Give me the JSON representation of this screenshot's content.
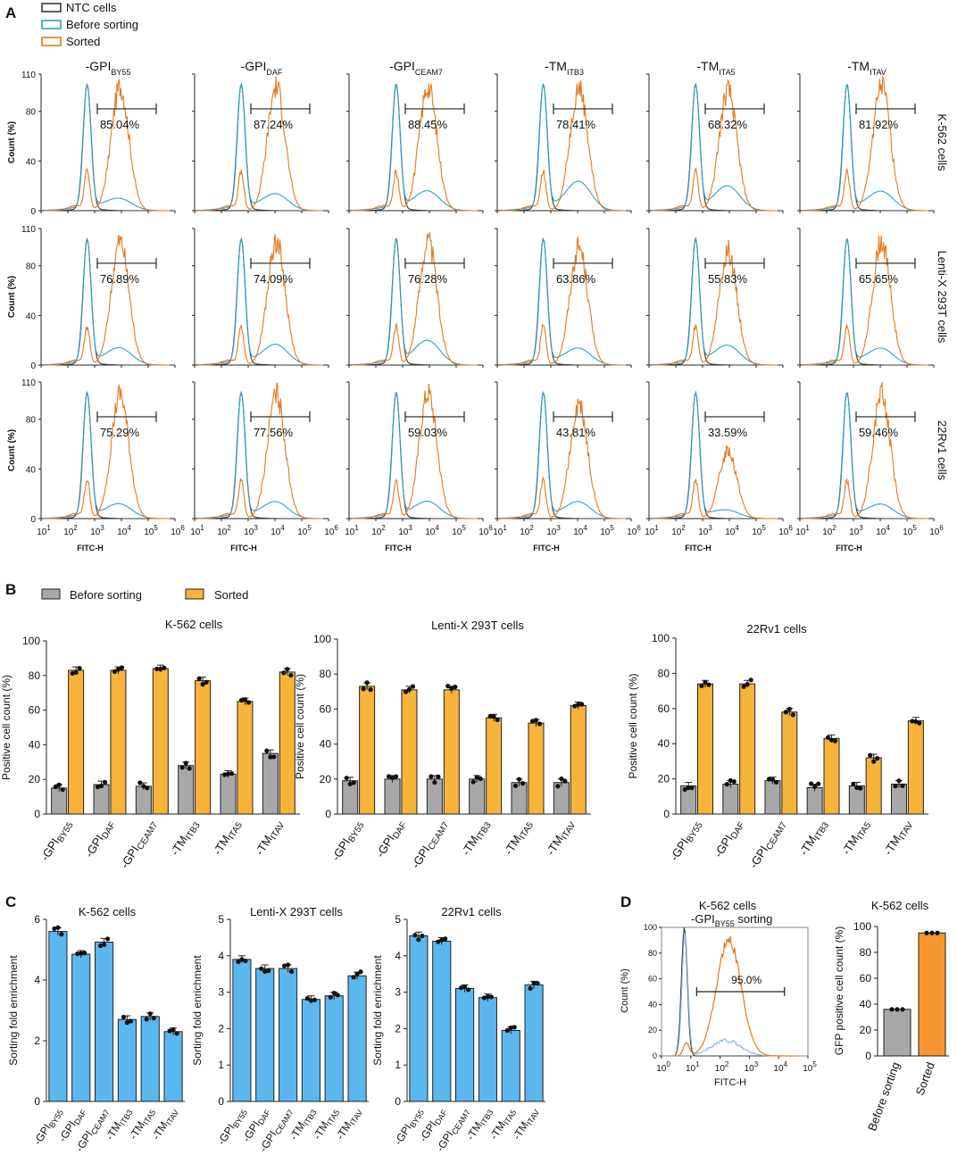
{
  "colors": {
    "ntc": "#3a3a3a",
    "before": "#2fa0cc",
    "sorted": "#e57a1e",
    "gray_bar": "#a8a8a8",
    "orange_bar": "#f8b33a",
    "blue_bar": "#5bb7ee",
    "orange_bar_d": "#f7962f"
  },
  "panel_a": {
    "label": "A",
    "legend": [
      "NTC cells",
      "Before sorting",
      "Sorted"
    ],
    "columns": [
      {
        "pre": "-GPI",
        "sub": "BY55"
      },
      {
        "pre": "-GPI",
        "sub": "DAF"
      },
      {
        "pre": "-GPI",
        "sub": "CEAM7"
      },
      {
        "pre": "-TM",
        "sub": "ITB3"
      },
      {
        "pre": "-TM",
        "sub": "ITA5"
      },
      {
        "pre": "-TM",
        "sub": "ITAV"
      }
    ],
    "rows": [
      "K-562 cells",
      "Lenti-X 293T cells",
      "22Rv1 cells"
    ],
    "ylabel": "Count  (%)",
    "yticks": [
      "0",
      "40",
      "80",
      "110"
    ],
    "xlabel": "FITC-H",
    "xtick_base": "10",
    "xtick_exp": [
      "1",
      "2",
      "3",
      "4",
      "5",
      "6"
    ],
    "gate_percent": [
      [
        "85.04%",
        "87.24%",
        "88.45%",
        "78.41%",
        "68.32%",
        "81.92%"
      ],
      [
        "76.89%",
        "74.09%",
        "76.28%",
        "63.86%",
        "55.83%",
        "65.65%"
      ],
      [
        "75.29%",
        "77.56%",
        "59.03%",
        "43.81%",
        "33.59%",
        "59.46%"
      ]
    ],
    "sorted_peak_height": [
      [
        100,
        100,
        100,
        100,
        97,
        100
      ],
      [
        100,
        100,
        100,
        95,
        92,
        100
      ],
      [
        100,
        100,
        100,
        93,
        55,
        100
      ]
    ],
    "before_tail_height": [
      [
        8,
        12,
        14,
        22,
        18,
        14
      ],
      [
        12,
        15,
        18,
        12,
        14,
        12
      ],
      [
        10,
        12,
        12,
        12,
        5,
        10
      ]
    ]
  },
  "chart_data": [
    {
      "panel": "B",
      "type": "bar",
      "legend": [
        "Before sorting",
        "Sorted"
      ],
      "charts": [
        {
          "title": "K-562 cells",
          "ylabel": "Positive cell count (%)",
          "ylim": [
            0,
            100
          ],
          "yticks": [
            "0",
            "20",
            "40",
            "60",
            "80",
            "100"
          ],
          "categories": [
            {
              "pre": "-GPI",
              "sub": "BY55"
            },
            {
              "pre": "-GPI",
              "sub": "DAF"
            },
            {
              "pre": "-GPI",
              "sub": "CEAM7"
            },
            {
              "pre": "-TM",
              "sub": "ITB3"
            },
            {
              "pre": "-TM",
              "sub": "ITA5"
            },
            {
              "pre": "-TM",
              "sub": "ITAV"
            }
          ],
          "series": [
            {
              "name": "Before sorting",
              "values": [
                15,
                17,
                16,
                28,
                23,
                35
              ]
            },
            {
              "name": "Sorted",
              "values": [
                83,
                83,
                84,
                77,
                65,
                82
              ]
            }
          ]
        },
        {
          "title": "Lenti-X 293T cells",
          "ylabel": "Positive cell count (%)",
          "ylim": [
            0,
            100
          ],
          "yticks": [
            "0",
            "20",
            "40",
            "60",
            "80",
            "100"
          ],
          "categories": [
            {
              "pre": "-GPI",
              "sub": "BY55"
            },
            {
              "pre": "-GPI",
              "sub": "DAF"
            },
            {
              "pre": "-GPI",
              "sub": "CEAM7"
            },
            {
              "pre": "-TM",
              "sub": "ITB3"
            },
            {
              "pre": "-TM",
              "sub": "ITA5"
            },
            {
              "pre": "-TM",
              "sub": "ITAV"
            }
          ],
          "series": [
            {
              "name": "Before sorting",
              "values": [
                19,
                20,
                20,
                20,
                18,
                18
              ]
            },
            {
              "name": "Sorted",
              "values": [
                73,
                71,
                71,
                55,
                52,
                62
              ]
            }
          ]
        },
        {
          "title": "22Rv1 cells",
          "ylabel": "Positive cell count (%)",
          "ylim": [
            0,
            100
          ],
          "yticks": [
            "0",
            "20",
            "40",
            "60",
            "80",
            "100"
          ],
          "categories": [
            {
              "pre": "-GPI",
              "sub": "BY55"
            },
            {
              "pre": "-GPI",
              "sub": "DAF"
            },
            {
              "pre": "-GPI",
              "sub": "CEAM7"
            },
            {
              "pre": "-TM",
              "sub": "ITB3"
            },
            {
              "pre": "-TM",
              "sub": "ITA5"
            },
            {
              "pre": "-TM",
              "sub": "ITAV"
            }
          ],
          "series": [
            {
              "name": "Before sorting",
              "values": [
                16,
                17,
                19,
                15,
                16,
                17
              ]
            },
            {
              "name": "Sorted",
              "values": [
                74,
                74,
                58,
                43,
                32,
                53
              ]
            }
          ]
        }
      ]
    },
    {
      "panel": "C",
      "type": "bar",
      "charts": [
        {
          "title": "K-562 cells",
          "ylabel": "Sorting fold enrichment",
          "ylim": [
            0,
            6
          ],
          "yticks": [
            "0",
            "2",
            "4",
            "6"
          ],
          "categories": [
            {
              "pre": "-GPI",
              "sub": "BY55"
            },
            {
              "pre": "-GPI",
              "sub": "DAF"
            },
            {
              "pre": "-GPI",
              "sub": "CEAM7"
            },
            {
              "pre": "-TM",
              "sub": "ITB3"
            },
            {
              "pre": "-TM",
              "sub": "ITA5"
            },
            {
              "pre": "-TM",
              "sub": "ITAV"
            }
          ],
          "values": [
            5.6,
            4.85,
            5.25,
            2.7,
            2.8,
            2.3
          ]
        },
        {
          "title": "Lenti-X 293T cells",
          "ylabel": "Sorting fold enrichment",
          "ylim": [
            0,
            5
          ],
          "yticks": [
            "0",
            "1",
            "2",
            "3",
            "4",
            "5"
          ],
          "categories": [
            {
              "pre": "-GPI",
              "sub": "BY55"
            },
            {
              "pre": "-GPI",
              "sub": "DAF"
            },
            {
              "pre": "-GPI",
              "sub": "CEAM7"
            },
            {
              "pre": "-TM",
              "sub": "ITB3"
            },
            {
              "pre": "-TM",
              "sub": "ITA5"
            },
            {
              "pre": "-TM",
              "sub": "ITAV"
            }
          ],
          "values": [
            3.9,
            3.65,
            3.65,
            2.8,
            2.9,
            3.45
          ]
        },
        {
          "title": "22Rv1 cells",
          "ylabel": "Sorting fold enrichment",
          "ylim": [
            0,
            5
          ],
          "yticks": [
            "0",
            "1",
            "2",
            "3",
            "4",
            "5"
          ],
          "categories": [
            {
              "pre": "-GPI",
              "sub": "BY55"
            },
            {
              "pre": "-GPI",
              "sub": "DAF"
            },
            {
              "pre": "-GPI",
              "sub": "CEAM7"
            },
            {
              "pre": "-TM",
              "sub": "ITB3"
            },
            {
              "pre": "-TM",
              "sub": "ITA5"
            },
            {
              "pre": "-TM",
              "sub": "ITAV"
            }
          ],
          "values": [
            4.55,
            4.4,
            3.1,
            2.85,
            1.95,
            3.2
          ]
        }
      ]
    },
    {
      "panel": "D",
      "type": "line",
      "title": "K-562 cells",
      "subtitle_pre": "-GPI",
      "subtitle_sub": "BY55",
      "subtitle_post": " sorting",
      "ylabel": "Count (%)",
      "xlabel": "FITC-H",
      "ylim": [
        0,
        100
      ],
      "yticks": [
        "0",
        "20",
        "40",
        "60",
        "80",
        "100"
      ],
      "xtick_base": "10",
      "xtick_exp": [
        "0",
        "1",
        "2",
        "3",
        "4",
        "5"
      ],
      "gate_percent": "95.0%"
    },
    {
      "panel": "D",
      "type": "bar",
      "title": "K-562 cells",
      "ylabel": "GFP positive cell count (%)",
      "ylim": [
        0,
        100
      ],
      "yticks": [
        "0",
        "20",
        "40",
        "60",
        "80",
        "100"
      ],
      "categories": [
        "Before sorting",
        "Sorted"
      ],
      "values": [
        36,
        95
      ]
    }
  ]
}
